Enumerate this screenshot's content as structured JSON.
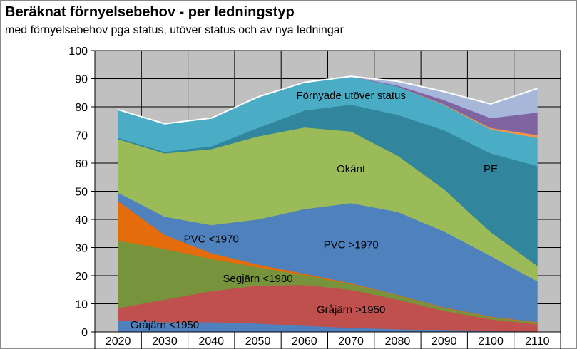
{
  "chart_data": {
    "type": "area",
    "title": "Beräknat förnyelsebehov - per ledningstyp",
    "subtitle": "med förnyelsebehov pga status, utöver status och av nya ledningar",
    "xlabel": "",
    "ylabel": "",
    "x": [
      "2020",
      "2030",
      "2040",
      "2050",
      "2060",
      "2070",
      "2080",
      "2090",
      "2100",
      "2110"
    ],
    "ylim": [
      0,
      100
    ],
    "yticks": [
      0,
      10,
      20,
      30,
      40,
      50,
      60,
      70,
      80,
      90,
      100
    ],
    "grid": true,
    "stacked": true,
    "series": [
      {
        "values": [
          4,
          3.5,
          3.5,
          3,
          2.2,
          1.5,
          1,
          0.5,
          0.3,
          0.2
        ],
        "color": "#4f81bd"
      },
      {
        "values": [
          4.5,
          8,
          11,
          13.5,
          14.5,
          13.5,
          10.5,
          7,
          4.2,
          2.5
        ],
        "color": "#c0504d"
      },
      {
        "values": [
          24,
          18,
          11.5,
          6.5,
          3.5,
          2,
          1.5,
          1,
          0.8,
          0.6
        ],
        "color": "#77933c"
      },
      {
        "values": [
          14,
          5,
          2,
          1,
          0.5,
          0.3,
          0.2,
          0.2,
          0.2,
          0.2
        ],
        "color": "#e46c0a"
      },
      {
        "values": [
          3,
          6.5,
          10,
          16,
          23,
          28.5,
          29.5,
          27,
          21.5,
          14.5
        ],
        "color": "#4f81bd"
      },
      {
        "values": [
          19,
          22.5,
          27,
          29.5,
          29,
          25.5,
          20,
          15,
          8.5,
          5.5
        ],
        "color": "#9bbb59"
      },
      {
        "values": [
          0.5,
          0.5,
          1,
          3,
          6,
          9.5,
          14.5,
          21,
          28,
          35.5
        ],
        "color": "#31859c"
      },
      {
        "values": [
          10,
          10,
          10,
          11,
          10,
          10,
          10,
          9,
          8.5,
          10
        ],
        "color": "#4bacc6"
      },
      {
        "values": [
          0,
          0,
          0,
          0,
          0,
          0,
          0,
          0.2,
          0.5,
          1
        ],
        "color": "#f79646"
      },
      {
        "values": [
          0,
          0,
          0,
          0,
          0,
          0,
          0.4,
          1.5,
          3.5,
          8
        ],
        "color": "#8064a2"
      },
      {
        "values": [
          0,
          0,
          0,
          0,
          0,
          0,
          1.5,
          3,
          5,
          8.5
        ],
        "color": "#a6b7d9"
      }
    ],
    "annotations": [
      {
        "text": "Förnyade utöver status",
        "x": "2070",
        "y": 84
      },
      {
        "text": "Okänt",
        "x": "2070",
        "y": 58
      },
      {
        "text": "PE",
        "x": "2100",
        "y": 58
      },
      {
        "text": "PVC <1970",
        "x": "2040",
        "y": 33
      },
      {
        "text": "PVC >1970",
        "x": "2070",
        "y": 31
      },
      {
        "text": "Segjärn <1980",
        "x": "2050",
        "y": 19
      },
      {
        "text": "Gråjärn >1950",
        "x": "2070",
        "y": 8
      },
      {
        "text": "Gråjärn <1950",
        "x": "2030",
        "y": 2.5
      }
    ]
  }
}
